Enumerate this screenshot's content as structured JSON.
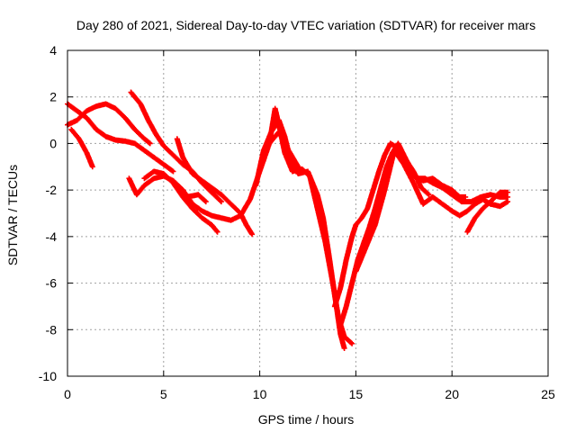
{
  "chart_data": {
    "type": "scatter",
    "title": "Day 280 of 2021, Sidereal Day-to-day VTEC variation (SDTVAR) for receiver mars",
    "xlabel": "GPS time / hours",
    "ylabel": "SDTVAR / TECUs",
    "xlim": [
      0,
      25
    ],
    "ylim": [
      -10,
      4
    ],
    "xticks": [
      "0",
      "5",
      "10",
      "15",
      "20",
      "25"
    ],
    "yticks": [
      "4",
      "2",
      "0",
      "-2",
      "-4",
      "-6",
      "-8",
      "-10"
    ],
    "grid": true,
    "marker": "+",
    "series": [
      {
        "color": "#ff0000",
        "segments": [
          [
            [
              0.0,
              1.7
            ],
            [
              0.5,
              1.4
            ],
            [
              1.0,
              1.1
            ],
            [
              1.5,
              0.6
            ],
            [
              2.0,
              0.3
            ],
            [
              2.5,
              0.15
            ],
            [
              3.0,
              0.1
            ],
            [
              3.5,
              0.0
            ],
            [
              4.0,
              -0.3
            ],
            [
              4.5,
              -0.6
            ],
            [
              5.0,
              -0.9
            ],
            [
              5.5,
              -1.2
            ]
          ],
          [
            [
              0.0,
              0.8
            ],
            [
              0.5,
              1.0
            ],
            [
              1.0,
              1.4
            ],
            [
              1.5,
              1.6
            ],
            [
              2.0,
              1.7
            ],
            [
              2.5,
              1.5
            ],
            [
              3.0,
              1.1
            ],
            [
              3.5,
              0.6
            ],
            [
              4.0,
              0.2
            ],
            [
              4.3,
              0.0
            ]
          ],
          [
            [
              0.2,
              0.6
            ],
            [
              0.6,
              0.2
            ],
            [
              1.0,
              -0.4
            ],
            [
              1.3,
              -1.0
            ]
          ],
          [
            [
              3.3,
              2.2
            ],
            [
              3.8,
              1.7
            ],
            [
              4.2,
              1.0
            ],
            [
              4.6,
              0.4
            ],
            [
              5.0,
              -0.1
            ],
            [
              5.5,
              -0.5
            ],
            [
              6.0,
              -0.9
            ],
            [
              6.5,
              -1.2
            ],
            [
              7.0,
              -1.7
            ],
            [
              7.5,
              -2.1
            ],
            [
              8.0,
              -2.5
            ]
          ],
          [
            [
              3.2,
              -1.5
            ],
            [
              3.6,
              -2.2
            ],
            [
              4.0,
              -1.8
            ],
            [
              4.5,
              -1.5
            ],
            [
              5.0,
              -1.4
            ],
            [
              5.5,
              -1.6
            ],
            [
              6.0,
              -2.0
            ],
            [
              6.5,
              -2.6
            ],
            [
              7.0,
              -2.9
            ],
            [
              7.5,
              -3.1
            ],
            [
              8.0,
              -3.2
            ],
            [
              8.5,
              -3.3
            ],
            [
              9.0,
              -3.1
            ],
            [
              9.5,
              -2.4
            ],
            [
              10.0,
              -1.2
            ],
            [
              10.5,
              0.0
            ],
            [
              11.0,
              0.5
            ],
            [
              11.5,
              -0.3
            ],
            [
              12.0,
              -1.0
            ]
          ],
          [
            [
              4.0,
              -1.5
            ],
            [
              4.5,
              -1.2
            ],
            [
              5.0,
              -1.3
            ],
            [
              5.5,
              -1.7
            ],
            [
              6.0,
              -2.3
            ],
            [
              6.5,
              -2.8
            ],
            [
              7.0,
              -3.2
            ],
            [
              7.5,
              -3.5
            ],
            [
              7.8,
              -3.8
            ]
          ],
          [
            [
              5.7,
              0.2
            ],
            [
              6.0,
              -0.6
            ],
            [
              6.5,
              -1.3
            ],
            [
              7.0,
              -1.6
            ],
            [
              7.5,
              -1.9
            ],
            [
              8.0,
              -2.2
            ],
            [
              8.5,
              -2.6
            ],
            [
              9.0,
              -3.0
            ],
            [
              9.3,
              -3.5
            ],
            [
              9.6,
              -3.9
            ]
          ],
          [
            [
              5.8,
              -1.9
            ],
            [
              6.2,
              -2.3
            ],
            [
              6.8,
              -2.2
            ],
            [
              7.2,
              -2.5
            ]
          ],
          [
            [
              9.8,
              -1.8
            ],
            [
              10.2,
              -0.3
            ],
            [
              10.6,
              0.5
            ],
            [
              11.0,
              1.0
            ],
            [
              11.3,
              0.3
            ],
            [
              11.6,
              -0.7
            ],
            [
              12.0,
              -1.3
            ],
            [
              12.5,
              -1.2
            ],
            [
              13.0,
              -2.2
            ],
            [
              13.3,
              -3.2
            ],
            [
              13.6,
              -4.8
            ],
            [
              13.9,
              -6.5
            ],
            [
              14.2,
              -8.2
            ],
            [
              14.4,
              -8.8
            ]
          ],
          [
            [
              10.5,
              0.0
            ],
            [
              10.8,
              1.5
            ],
            [
              11.0,
              0.8
            ],
            [
              11.3,
              -0.4
            ],
            [
              11.7,
              -1.2
            ],
            [
              12.2,
              -1.1
            ],
            [
              12.6,
              -1.4
            ],
            [
              13.0,
              -2.8
            ],
            [
              13.4,
              -4.2
            ],
            [
              13.8,
              -6.0
            ],
            [
              14.1,
              -7.5
            ],
            [
              14.4,
              -8.3
            ],
            [
              14.8,
              -8.6
            ]
          ],
          [
            [
              13.9,
              -7.0
            ],
            [
              14.2,
              -6.2
            ],
            [
              14.5,
              -5.0
            ],
            [
              14.8,
              -4.0
            ],
            [
              15.0,
              -3.5
            ],
            [
              15.3,
              -3.2
            ],
            [
              15.6,
              -2.8
            ],
            [
              15.9,
              -2.0
            ],
            [
              16.2,
              -1.2
            ],
            [
              16.5,
              -0.5
            ],
            [
              16.8,
              0.0
            ],
            [
              17.2,
              -0.2
            ],
            [
              17.6,
              -0.7
            ],
            [
              18.0,
              -1.2
            ],
            [
              18.4,
              -1.9
            ],
            [
              18.8,
              -2.2
            ]
          ],
          [
            [
              14.2,
              -7.8
            ],
            [
              14.5,
              -7.0
            ],
            [
              14.8,
              -6.0
            ],
            [
              15.1,
              -5.0
            ],
            [
              15.4,
              -4.3
            ],
            [
              15.7,
              -3.6
            ],
            [
              16.0,
              -2.8
            ],
            [
              16.3,
              -1.9
            ],
            [
              16.6,
              -1.0
            ],
            [
              16.9,
              -0.4
            ],
            [
              17.2,
              0.0
            ],
            [
              17.5,
              -0.5
            ],
            [
              17.8,
              -1.0
            ],
            [
              18.2,
              -1.5
            ],
            [
              18.6,
              -1.5
            ],
            [
              19.0,
              -1.7
            ],
            [
              19.5,
              -1.9
            ],
            [
              20.0,
              -2.2
            ],
            [
              20.5,
              -2.5
            ],
            [
              21.0,
              -2.5
            ],
            [
              21.5,
              -2.3
            ],
            [
              22.0,
              -2.2
            ],
            [
              22.5,
              -2.3
            ],
            [
              22.9,
              -2.3
            ]
          ],
          [
            [
              15.0,
              -5.5
            ],
            [
              15.5,
              -4.5
            ],
            [
              16.0,
              -3.5
            ],
            [
              16.5,
              -2.0
            ],
            [
              17.0,
              -0.3
            ],
            [
              17.5,
              -0.9
            ],
            [
              18.0,
              -1.7
            ],
            [
              18.5,
              -2.6
            ],
            [
              19.0,
              -2.3
            ],
            [
              19.5,
              -2.6
            ],
            [
              20.0,
              -2.9
            ],
            [
              20.4,
              -3.1
            ],
            [
              20.8,
              -2.9
            ],
            [
              21.2,
              -2.6
            ],
            [
              21.6,
              -2.4
            ],
            [
              22.0,
              -2.6
            ],
            [
              22.5,
              -2.7
            ],
            [
              22.9,
              -2.5
            ]
          ],
          [
            [
              17.2,
              -0.2
            ],
            [
              17.6,
              -0.8
            ],
            [
              18.0,
              -1.4
            ],
            [
              18.5,
              -1.6
            ],
            [
              19.0,
              -1.5
            ],
            [
              19.5,
              -1.8
            ],
            [
              20.0,
              -2.0
            ],
            [
              20.4,
              -2.3
            ],
            [
              20.7,
              -2.3
            ]
          ],
          [
            [
              20.8,
              -3.8
            ],
            [
              21.2,
              -3.2
            ],
            [
              21.6,
              -2.8
            ],
            [
              22.0,
              -2.5
            ],
            [
              22.5,
              -2.1
            ],
            [
              22.9,
              -2.1
            ]
          ]
        ]
      }
    ]
  }
}
